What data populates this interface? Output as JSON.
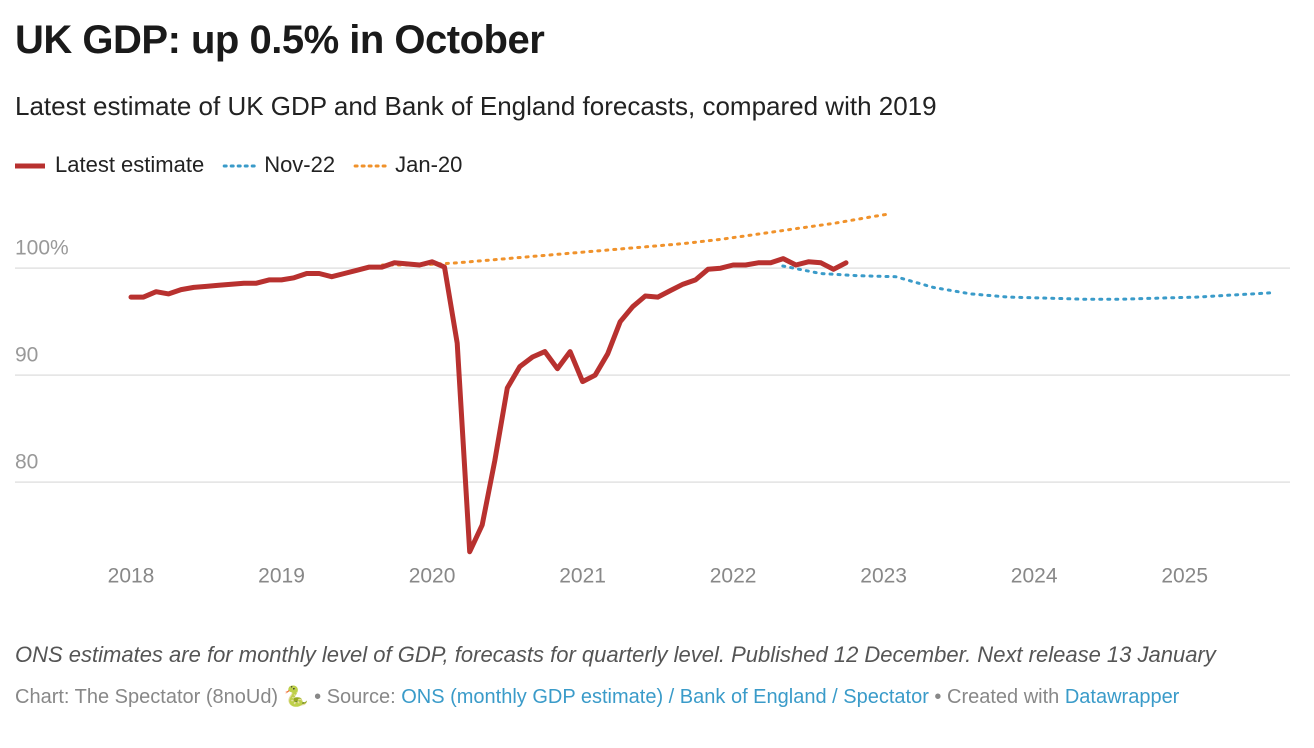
{
  "chart_data": {
    "type": "line",
    "title": "UK GDP: up 0.5% in October",
    "subtitle": "Latest estimate of UK GDP and Bank of England forecasts, compared with 2019",
    "xlim": [
      2018,
      2025.6
    ],
    "xticks": [
      2018,
      2019,
      2020,
      2021,
      2022,
      2023,
      2024,
      2025
    ],
    "ylim": [
      73,
      106
    ],
    "yticks": [
      {
        "value": 100,
        "label": "100%"
      },
      90,
      80
    ],
    "grid": true,
    "legend": "top-left",
    "series": [
      {
        "name": "Latest estimate",
        "color": "#b8312f",
        "style": "solid",
        "x": [
          2018,
          2018.083,
          2018.167,
          2018.25,
          2018.333,
          2018.417,
          2018.5,
          2018.583,
          2018.667,
          2018.75,
          2018.833,
          2018.917,
          2019,
          2019.083,
          2019.167,
          2019.25,
          2019.333,
          2019.417,
          2019.5,
          2019.583,
          2019.667,
          2019.75,
          2019.833,
          2019.917,
          2020,
          2020.083,
          2020.167,
          2020.25,
          2020.333,
          2020.417,
          2020.5,
          2020.583,
          2020.667,
          2020.75,
          2020.833,
          2020.917,
          2021,
          2021.083,
          2021.167,
          2021.25,
          2021.333,
          2021.417,
          2021.5,
          2021.583,
          2021.667,
          2021.75,
          2021.833,
          2021.917,
          2022,
          2022.083,
          2022.167,
          2022.25,
          2022.333,
          2022.417,
          2022.5,
          2022.583,
          2022.667,
          2022.75
        ],
        "values": [
          97.3,
          97.3,
          97.8,
          97.6,
          98.0,
          98.2,
          98.3,
          98.4,
          98.5,
          98.6,
          98.6,
          98.9,
          98.9,
          99.1,
          99.5,
          99.5,
          99.2,
          99.5,
          99.8,
          100.1,
          100.1,
          100.5,
          100.4,
          100.3,
          100.6,
          100.1,
          93.0,
          73.5,
          76.0,
          82.0,
          88.8,
          90.8,
          91.7,
          92.2,
          90.6,
          92.2,
          89.4,
          90.0,
          92.0,
          95.0,
          96.4,
          97.4,
          97.3,
          97.9,
          98.5,
          98.9,
          99.9,
          100.0,
          100.3,
          100.3,
          100.5,
          100.5,
          100.9,
          100.3,
          100.6,
          100.5,
          99.9,
          100.5
        ]
      },
      {
        "name": "Nov-22",
        "color": "#3a9bc9",
        "style": "dotted",
        "x": [
          2022.33,
          2022.58,
          2022.83,
          2023.08,
          2023.33,
          2023.58,
          2023.83,
          2024.08,
          2024.33,
          2024.58,
          2024.83,
          2025.08,
          2025.33,
          2025.58
        ],
        "values": [
          100.2,
          99.5,
          99.3,
          99.2,
          98.2,
          97.6,
          97.3,
          97.2,
          97.1,
          97.1,
          97.2,
          97.3,
          97.5,
          97.7
        ]
      },
      {
        "name": "Jan-20",
        "color": "#f0922b",
        "style": "dotted",
        "x": [
          2019.67,
          2019.92,
          2020.17,
          2020.42,
          2020.67,
          2020.92,
          2021.17,
          2021.42,
          2021.67,
          2021.92,
          2022.17,
          2022.42,
          2022.67,
          2022.92,
          2023.05
        ],
        "values": [
          100.3,
          100.3,
          100.5,
          100.8,
          101.1,
          101.4,
          101.7,
          102.0,
          102.3,
          102.7,
          103.2,
          103.7,
          104.2,
          104.8,
          105.1
        ]
      }
    ],
    "note": "ONS estimates are for monthly level of GDP, forecasts for quarterly level. Published 12 December. Next release 13 January",
    "footer": {
      "credit": "Chart: The Spectator (8noUd) 🐍",
      "separator": "•",
      "source_label": "Source:",
      "source_links": "ONS (monthly GDP estimate) / Bank of England / Spectator",
      "created_label": "Created with",
      "created_link": "Datawrapper"
    }
  }
}
